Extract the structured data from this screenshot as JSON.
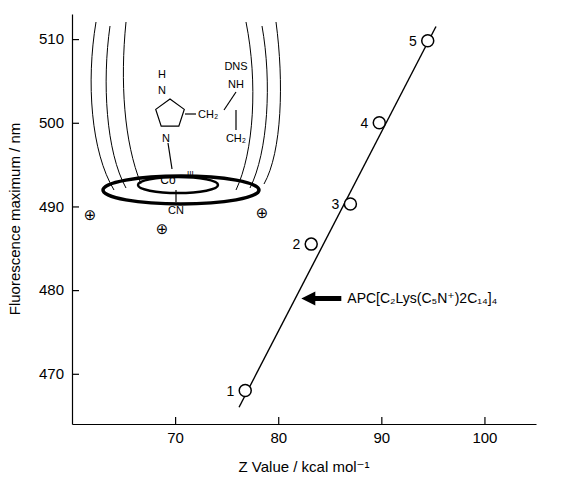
{
  "chart_data": {
    "type": "scatter",
    "x_label": "Z Value / kcal mol⁻¹",
    "y_label": "Fluorescence maximum / nm",
    "categories": [
      "1",
      "2",
      "3",
      "4",
      "5"
    ],
    "x": [
      76.8,
      83.2,
      87.0,
      89.8,
      94.5
    ],
    "values": [
      468,
      485.5,
      490.3,
      500,
      509.8
    ],
    "fit_line": {
      "x": [
        76.2,
        95.3
      ],
      "values": [
        466,
        511.5
      ]
    },
    "marker": "circle",
    "color": "#000000",
    "xlim": [
      60,
      105
    ],
    "xticks": [
      70,
      80,
      90,
      100
    ],
    "ylim": [
      464,
      513
    ],
    "yticks": [
      470,
      480,
      490,
      500,
      510
    ],
    "annotation": {
      "text": "APC[C₂Lys(C₅N⁺)2C₁₄]₄",
      "y": 479
    },
    "inset_labels": [
      "H",
      "N",
      "N",
      "CH₂",
      "CH₂",
      "NH",
      "DNS",
      "Co",
      "III",
      "CN",
      "⊕",
      "⊕",
      "⊕"
    ]
  }
}
